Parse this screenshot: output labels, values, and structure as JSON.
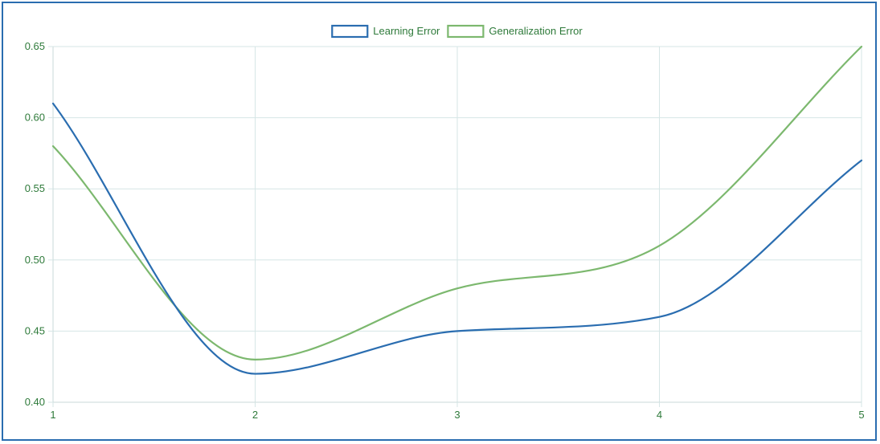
{
  "chart_data": {
    "type": "line",
    "title": "",
    "xlabel": "",
    "ylabel": "",
    "x": [
      1,
      2,
      3,
      4,
      5
    ],
    "xlim": [
      1,
      5
    ],
    "ylim": [
      0.4,
      0.65
    ],
    "x_ticks": [
      "1",
      "2",
      "3",
      "4",
      "5"
    ],
    "y_ticks": [
      "0.40",
      "0.45",
      "0.50",
      "0.55",
      "0.60",
      "0.65"
    ],
    "grid": true,
    "legend_position": "top",
    "series": [
      {
        "name": "Learning Error",
        "color": "#2a6db0",
        "values": [
          0.61,
          0.42,
          0.45,
          0.46,
          0.57
        ]
      },
      {
        "name": "Generalization Error",
        "color": "#7cb86e",
        "values": [
          0.58,
          0.43,
          0.48,
          0.51,
          0.65
        ]
      }
    ],
    "colors": {
      "frame": "#2a6db0",
      "grid": "#d6e6e6",
      "text": "#2e7a3a"
    }
  }
}
